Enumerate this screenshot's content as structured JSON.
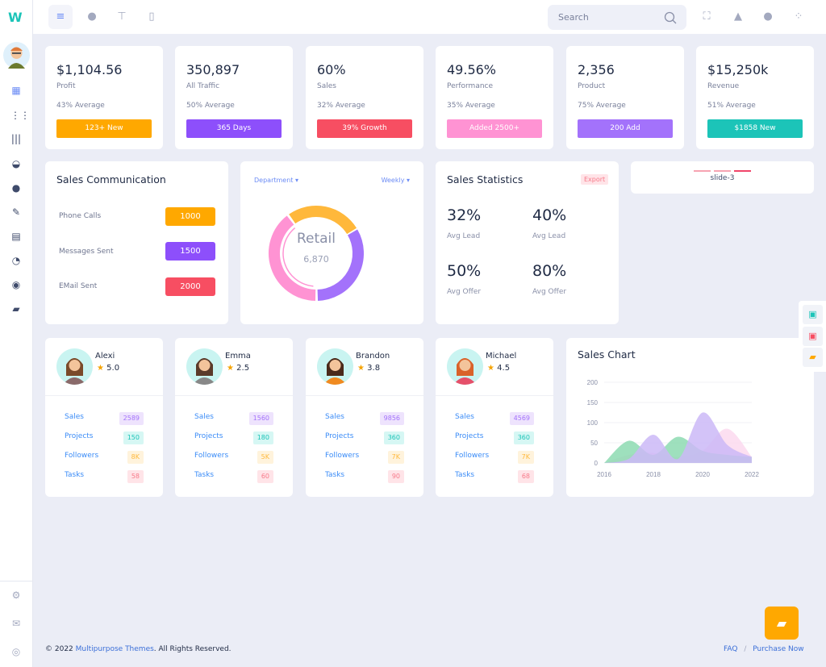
{
  "brand": {
    "logo": "W"
  },
  "sidebar": {
    "items": [
      {
        "icon": "dashboard-icon"
      },
      {
        "icon": "apps-grid-icon"
      },
      {
        "icon": "library-icon"
      },
      {
        "icon": "basket-icon"
      },
      {
        "icon": "user-icon"
      },
      {
        "icon": "edit-icon"
      },
      {
        "icon": "document-icon"
      },
      {
        "icon": "pie-chart-icon"
      },
      {
        "icon": "lock-icon"
      },
      {
        "icon": "chat-icon"
      }
    ],
    "bottom": [
      {
        "icon": "settings-icon"
      },
      {
        "icon": "mail-icon"
      },
      {
        "icon": "power-icon"
      }
    ]
  },
  "topbar": {
    "search_placeholder": "Search"
  },
  "kpis": [
    {
      "value": "$1,104.56",
      "label": "Profit",
      "average": "43% Average",
      "button": "123+ New",
      "color": "#ffa800"
    },
    {
      "value": "350,897",
      "label": "All Traffic",
      "average": "50% Average",
      "button": "365 Days",
      "color": "#8d4ffb"
    },
    {
      "value": "60%",
      "label": "Sales",
      "average": "32% Average",
      "button": "39% Growth",
      "color": "#f74e62"
    },
    {
      "value": "49.56%",
      "label": "Performance",
      "average": "35% Average",
      "button": "Added 2500+",
      "color": "#ff93d3"
    },
    {
      "value": "2,356",
      "label": "Product",
      "average": "75% Average",
      "button": "200 Add",
      "color": "#a372fb"
    },
    {
      "value": "$15,250k",
      "label": "Revenue",
      "average": "51% Average",
      "button": "$1858 New",
      "color": "#1cc4b8"
    }
  ],
  "communication": {
    "title": "Sales Communication",
    "items": [
      {
        "label": "Phone Calls",
        "value": "1000",
        "color": "#ffa800"
      },
      {
        "label": "Messages Sent",
        "value": "1500",
        "color": "#8d4ffb"
      },
      {
        "label": "EMail Sent",
        "value": "2000",
        "color": "#f74e62"
      }
    ]
  },
  "donut": {
    "dropdown_left": "Department",
    "dropdown_right": "Weekly",
    "center_label": "Retail",
    "center_value": "6,870",
    "colors": [
      "#ffb83b",
      "#a372fb",
      "#ff93d3"
    ]
  },
  "statistics": {
    "title": "Sales Statistics",
    "export": "Export",
    "items": [
      {
        "value": "32%",
        "label": "Avg Lead"
      },
      {
        "value": "40%",
        "label": "Avg Lead"
      },
      {
        "value": "50%",
        "label": "Avg Offer"
      },
      {
        "value": "80%",
        "label": "Avg Offer"
      }
    ]
  },
  "slider": {
    "label": "slide-3",
    "active_index": 2,
    "count": 3
  },
  "profiles": [
    {
      "name": "Alexi",
      "rating": "5.0",
      "stats": [
        "2589",
        "150",
        "8K",
        "58"
      ]
    },
    {
      "name": "Emma",
      "rating": "2.5",
      "stats": [
        "1560",
        "180",
        "5K",
        "60"
      ]
    },
    {
      "name": "Brandon",
      "rating": "3.8",
      "stats": [
        "9856",
        "360",
        "7K",
        "90"
      ]
    },
    {
      "name": "Michael",
      "rating": "4.5",
      "stats": [
        "4569",
        "360",
        "7K",
        "68"
      ]
    }
  ],
  "profile_stat_labels": [
    "Sales",
    "Projects",
    "Followers",
    "Tasks"
  ],
  "chart_data": {
    "type": "area",
    "title": "Sales Chart",
    "x": [
      2016,
      2017,
      2018,
      2019,
      2020,
      2021,
      2022
    ],
    "xticks": [
      "2016",
      "2018",
      "2020",
      "2022"
    ],
    "yticks": [
      "0",
      "50",
      "100",
      "150",
      "200"
    ],
    "ylim": [
      0,
      200
    ],
    "grid": true,
    "series": [
      {
        "values": [
          0,
          20,
          25,
          15,
          30,
          85,
          15
        ],
        "color": "#fbd9ef"
      },
      {
        "values": [
          0,
          55,
          20,
          65,
          30,
          20,
          15
        ],
        "color": "#8ddbb1"
      },
      {
        "values": [
          0,
          10,
          70,
          10,
          125,
          45,
          15
        ],
        "color": "#cbb9f7"
      }
    ]
  },
  "footer": {
    "copyright_prefix": "© 2022 ",
    "company": "Multipurpose Themes",
    "copyright_suffix": ". All Rights Reserved.",
    "faq": "FAQ",
    "separator": "/",
    "purchase": "Purchase Now"
  }
}
